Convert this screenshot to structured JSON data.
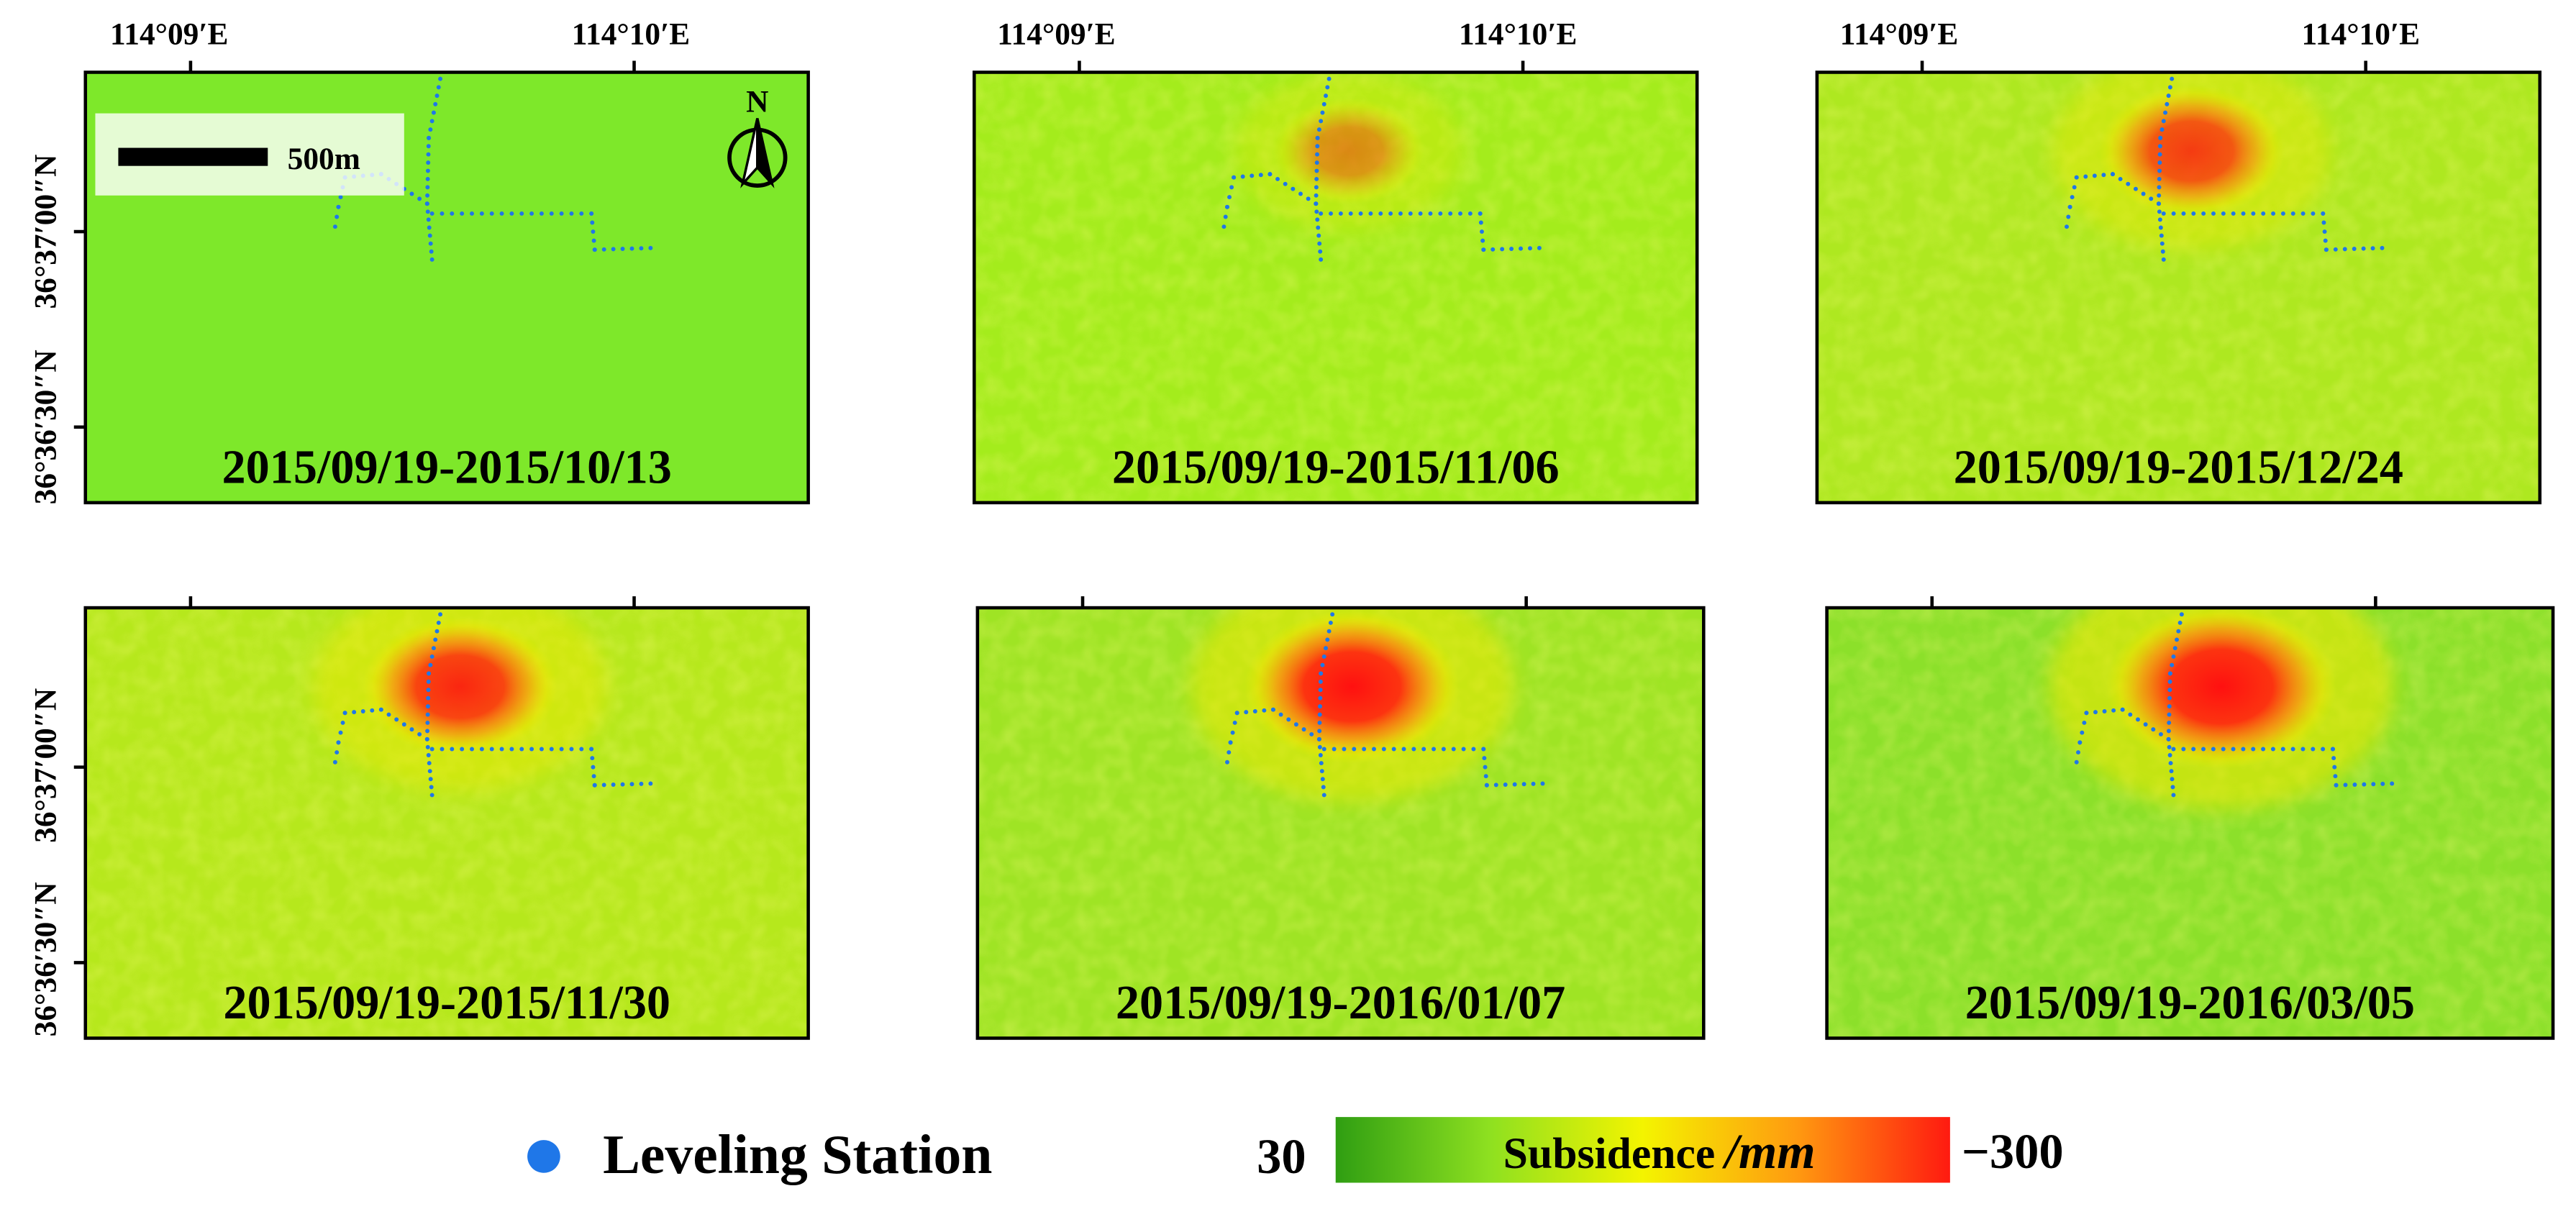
{
  "map": {
    "axes": {
      "lon_ticks": [
        "114°09′E",
        "114°10′E"
      ],
      "lat_ticks": [
        "36°37′00″N",
        "36°36′30″N"
      ]
    },
    "scale_bar": {
      "label": "500m"
    },
    "north_arrow": {
      "label": "N"
    },
    "panels": [
      {
        "date_range": "2015/09/19-2015/10/13",
        "subsidence_intensity": 0.0
      },
      {
        "date_range": "2015/09/19-2015/11/06",
        "subsidence_intensity": 0.2
      },
      {
        "date_range": "2015/09/19-2015/12/24",
        "subsidence_intensity": 0.55
      },
      {
        "date_range": "2015/09/19-2015/11/30",
        "subsidence_intensity": 0.65
      },
      {
        "date_range": "2015/09/19-2016/01/07",
        "subsidence_intensity": 0.85
      },
      {
        "date_range": "2015/09/19-2016/03/05",
        "subsidence_intensity": 1.0
      }
    ],
    "legend": {
      "station_label": "Leveling Station",
      "station_color": "#1f77e8",
      "colorbar_min": "30",
      "colorbar_max": "−300",
      "colorbar_title": "Subsidence",
      "colorbar_unit": "/mm",
      "colorbar_colors": [
        "#2f9e12",
        "#8ee020",
        "#f4f400",
        "#ff9a10",
        "#ff1a10"
      ]
    }
  }
}
